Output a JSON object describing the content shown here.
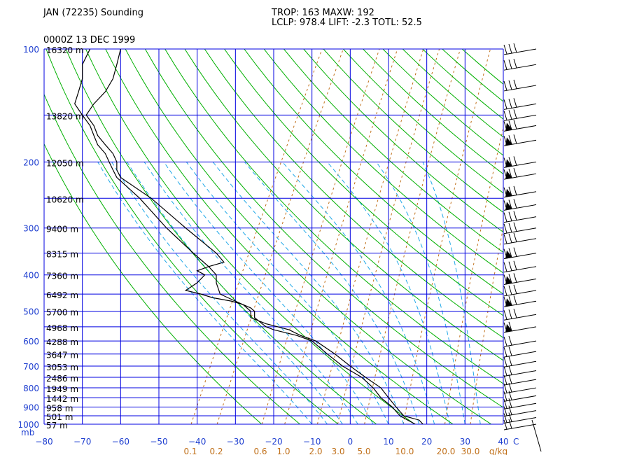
{
  "header": {
    "title": "JAN (72235) Sounding",
    "datetime": "0000Z 13 DEC 1999",
    "indices_line1": "TROP: 163  MAXW: 192",
    "indices_line2": "LCLP: 978.4  LIFT:  -2.3   TOTL:  52.5"
  },
  "colors": {
    "grid": "#0000e0",
    "dry_adiabat": "#00b000",
    "moist_adiabat": "#20a8e8",
    "mixing_ratio": "#c0701a",
    "sounding": "#000000"
  },
  "chart_data": {
    "type": "line",
    "x_axis": {
      "range": [
        -80,
        40
      ],
      "ticks": [
        -80,
        -70,
        -60,
        -50,
        -40,
        -30,
        -20,
        -10,
        0,
        10,
        20,
        30,
        40
      ],
      "unit_label": "C"
    },
    "y_axis": {
      "scale": "log",
      "range": [
        1000,
        100
      ],
      "ticks": [
        100,
        200,
        300,
        400,
        500,
        600,
        700,
        800,
        900,
        1000
      ],
      "unit_label": "mb"
    },
    "mixing_ratio_labels": [
      "0.1",
      "0.2",
      "0.6",
      "1.0",
      "2.0",
      "3.0",
      "5.0",
      "10.0",
      "20.0",
      "30.0",
      "g/kg"
    ],
    "mixing_ratio_values": [
      0.1,
      0.2,
      0.6,
      1.0,
      2.0,
      3.0,
      5.0,
      10.0,
      20.0,
      30.0
    ],
    "height_labels": [
      {
        "p": 100,
        "text": "16320 m"
      },
      {
        "p": 150,
        "text": "13820 m"
      },
      {
        "p": 200,
        "text": "12050 m"
      },
      {
        "p": 250,
        "text": "10620 m"
      },
      {
        "p": 300,
        "text": "9400 m"
      },
      {
        "p": 350,
        "text": "8315 m"
      },
      {
        "p": 400,
        "text": "7360 m"
      },
      {
        "p": 450,
        "text": "6492 m"
      },
      {
        "p": 500,
        "text": "5700 m"
      },
      {
        "p": 550,
        "text": "4968 m"
      },
      {
        "p": 600,
        "text": "4288 m"
      },
      {
        "p": 650,
        "text": "3647 m"
      },
      {
        "p": 700,
        "text": "3053 m"
      },
      {
        "p": 750,
        "text": "2486 m"
      },
      {
        "p": 800,
        "text": "1949 m"
      },
      {
        "p": 850,
        "text": "1442 m"
      },
      {
        "p": 900,
        "text": "958 m"
      },
      {
        "p": 950,
        "text": "501 m"
      },
      {
        "p": 1000,
        "text": "57 m"
      }
    ],
    "series": [
      {
        "values": [
          [
            1000,
            19
          ],
          [
            975,
            18
          ],
          [
            950,
            14
          ],
          [
            925,
            13
          ],
          [
            900,
            12
          ],
          [
            850,
            10
          ],
          [
            800,
            8
          ],
          [
            750,
            4
          ],
          [
            700,
            0
          ],
          [
            650,
            -4
          ],
          [
            600,
            -9
          ],
          [
            580,
            -13
          ],
          [
            560,
            -16
          ],
          [
            540,
            -22
          ],
          [
            520,
            -26
          ],
          [
            500,
            -26
          ],
          [
            480,
            -28
          ],
          [
            470,
            -31
          ],
          [
            460,
            -36
          ],
          [
            450,
            -39
          ],
          [
            440,
            -43
          ],
          [
            420,
            -40
          ],
          [
            400,
            -38
          ],
          [
            390,
            -40
          ],
          [
            380,
            -37
          ],
          [
            370,
            -33
          ],
          [
            350,
            -35
          ],
          [
            300,
            -43
          ],
          [
            250,
            -52
          ],
          [
            220,
            -60
          ],
          [
            210,
            -61
          ],
          [
            200,
            -61
          ],
          [
            190,
            -62
          ],
          [
            180,
            -64
          ],
          [
            170,
            -66
          ],
          [
            160,
            -67
          ],
          [
            150,
            -69
          ],
          [
            140,
            -67
          ],
          [
            130,
            -64
          ],
          [
            120,
            -62
          ],
          [
            110,
            -61
          ],
          [
            100,
            -60
          ]
        ]
      },
      {
        "values": [
          [
            1000,
            17
          ],
          [
            975,
            15
          ],
          [
            950,
            13
          ],
          [
            925,
            12
          ],
          [
            900,
            11
          ],
          [
            850,
            8
          ],
          [
            800,
            6
          ],
          [
            750,
            3
          ],
          [
            700,
            -2
          ],
          [
            650,
            -6
          ],
          [
            600,
            -10
          ],
          [
            580,
            -14
          ],
          [
            560,
            -20
          ],
          [
            550,
            -22
          ],
          [
            540,
            -23
          ],
          [
            520,
            -25
          ],
          [
            500,
            -25
          ],
          [
            490,
            -26
          ],
          [
            480,
            -28
          ],
          [
            470,
            -30
          ],
          [
            450,
            -34
          ],
          [
            420,
            -35
          ],
          [
            400,
            -35
          ],
          [
            380,
            -37
          ],
          [
            350,
            -41
          ],
          [
            300,
            -48
          ],
          [
            250,
            -55
          ],
          [
            220,
            -61
          ],
          [
            210,
            -62
          ],
          [
            200,
            -63
          ],
          [
            190,
            -64
          ],
          [
            180,
            -66
          ],
          [
            170,
            -67
          ],
          [
            160,
            -68
          ],
          [
            150,
            -70
          ],
          [
            140,
            -72
          ],
          [
            130,
            -71
          ],
          [
            120,
            -70
          ],
          [
            110,
            -70
          ],
          [
            100,
            -68
          ]
        ]
      }
    ]
  }
}
